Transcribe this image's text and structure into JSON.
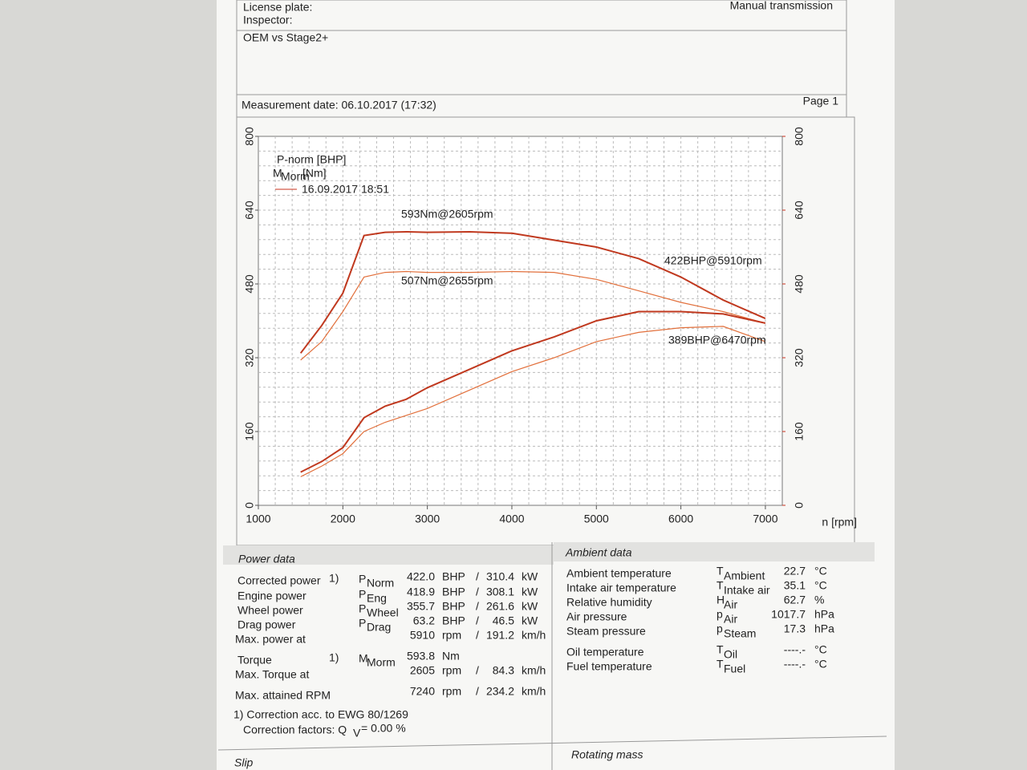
{
  "header": {
    "license_plate": "License plate:",
    "inspector": "Inspector:",
    "transmission": "Manual transmission",
    "comment": "OEM vs Stage2+",
    "measurement_date": "Measurement date: 06.10.2017 (17:32)",
    "page": "Page 1"
  },
  "chart_data": {
    "type": "line",
    "legend": {
      "power_label": "P-norm [BHP]",
      "torque_symbol": "M",
      "torque_subscript": "Morm",
      "torque_unit": "[Nm]",
      "run_label": "16.09.2017 18:51"
    },
    "x_label": "n [rpm]",
    "x": [
      1500,
      1750,
      2000,
      2250,
      2500,
      2750,
      3000,
      3500,
      4000,
      4500,
      5000,
      5500,
      6000,
      6500,
      7000
    ],
    "series": [
      {
        "color": "#c0391f",
        "values": [
          330,
          390,
          460,
          585,
          592,
          593,
          592,
          593,
          590,
          575,
          560,
          535,
          495,
          445,
          405
        ]
      },
      {
        "color": "#e2703c",
        "values": [
          315,
          355,
          420,
          495,
          505,
          507,
          505,
          505,
          507,
          505,
          490,
          465,
          440,
          420,
          395
        ]
      },
      {
        "color": "#c0391f",
        "values": [
          72,
          95,
          125,
          190,
          215,
          230,
          255,
          295,
          335,
          365,
          400,
          420,
          420,
          415,
          395
        ],
        "axis": "y2"
      },
      {
        "color": "#e2703c",
        "values": [
          62,
          85,
          112,
          160,
          180,
          195,
          210,
          250,
          290,
          320,
          355,
          375,
          385,
          388,
          355
        ],
        "axis": "y2"
      }
    ],
    "annotations": [
      "593Nm@2605rpm",
      "507Nm@2655rpm",
      "422BHP@5910rpm",
      "389BHP@6470rpm"
    ],
    "xlim": [
      1000,
      7200
    ],
    "xticks": [
      1000,
      2000,
      3000,
      4000,
      5000,
      6000,
      7000
    ],
    "ylim": [
      0,
      800
    ],
    "yticks": [
      0,
      160,
      320,
      480,
      640,
      800
    ],
    "y2lim": [
      0,
      800
    ],
    "y2ticks": [
      0,
      160,
      320,
      480,
      640,
      800
    ],
    "grid": true
  },
  "power_data": {
    "title": "Power data",
    "separator": "/",
    "rows": [
      {
        "label": "Corrected power",
        "note": "1)",
        "symbol": "P",
        "sub": "Norm",
        "v1": "422.0",
        "u1": "BHP",
        "v2": "310.4",
        "u2": "kW",
        "color": "#c8321e"
      },
      {
        "label": "Engine power",
        "symbol": "P",
        "sub": "Eng",
        "v1": "418.9",
        "u1": "BHP",
        "v2": "308.1",
        "u2": "kW",
        "color": "#c8321e"
      },
      {
        "label": "Wheel power",
        "symbol": "P",
        "sub": "Wheel",
        "v1": "355.7",
        "u1": "BHP",
        "v2": "261.6",
        "u2": "kW",
        "color": "#2a3fa0"
      },
      {
        "label": "Drag power",
        "symbol": "P",
        "sub": "Drag",
        "v1": "63.2",
        "u1": "BHP",
        "v2": "46.5",
        "u2": "kW",
        "color": "#2a7a2a"
      },
      {
        "label": "Max. power at",
        "v1": "5910",
        "u1": "rpm",
        "v2": "191.2",
        "u2": "km/h",
        "color": "#222"
      },
      {
        "label": "Torque",
        "note": "1)",
        "symbol": "M",
        "sub": "Morm",
        "v1": "593.8",
        "u1": "Nm",
        "color": "#c8321e"
      },
      {
        "label": "Max. Torque at",
        "v1": "2605",
        "u1": "rpm",
        "v2": "84.3",
        "u2": "km/h",
        "color": "#222"
      },
      {
        "label": "Max. attained RPM",
        "v1": "7240",
        "u1": "rpm",
        "v2": "234.2",
        "u2": "km/h",
        "color": "#222"
      }
    ],
    "footnote": "1) Correction acc. to EWG 80/1269",
    "factors": {
      "label": "Correction factors: Q",
      "sub": "V",
      "value": "= 0.00 %"
    }
  },
  "ambient_data": {
    "title": "Ambient data",
    "rows": [
      {
        "label": "Ambient temperature",
        "symbol": "T",
        "sub": "Ambient",
        "value": "22.7",
        "unit": "°C"
      },
      {
        "label": "Intake air temperature",
        "symbol": "T",
        "sub": "Intake air",
        "value": "35.1",
        "unit": "°C"
      },
      {
        "label": "Relative humidity",
        "symbol": "H",
        "sub": "Air",
        "value": "62.7",
        "unit": "%"
      },
      {
        "label": "Air pressure",
        "symbol": "p",
        "sub": "Air",
        "value": "1017.7",
        "unit": "hPa"
      },
      {
        "label": "Steam pressure",
        "symbol": "p",
        "sub": "Steam",
        "value": "17.3",
        "unit": "hPa"
      },
      {
        "label": "Oil temperature",
        "symbol": "T",
        "sub": "Oil",
        "value": "----.-",
        "unit": "°C"
      },
      {
        "label": "Fuel temperature",
        "symbol": "T",
        "sub": "Fuel",
        "value": "----.-",
        "unit": "°C"
      }
    ]
  },
  "sections": {
    "slip": "Slip",
    "rotating_mass": "Rotating mass"
  }
}
